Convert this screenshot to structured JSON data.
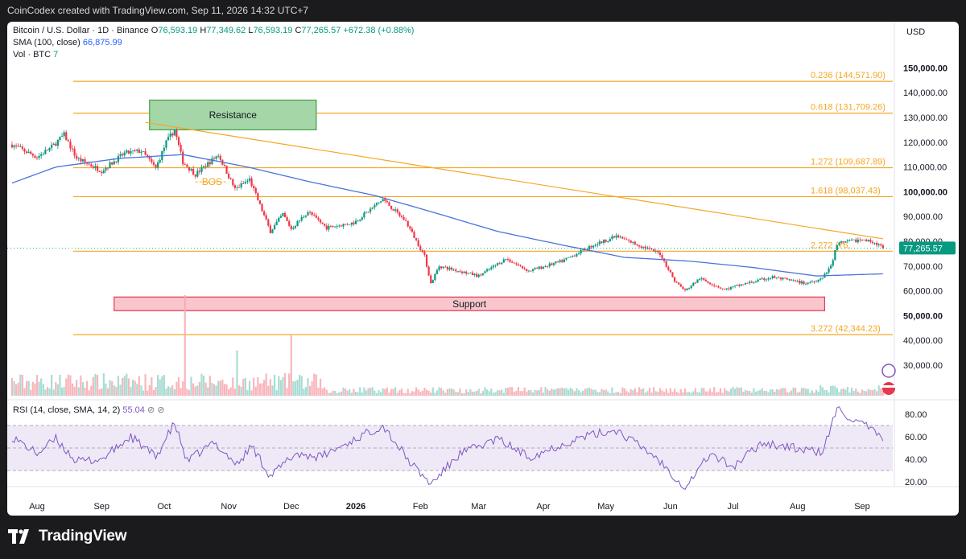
{
  "credit": "CoinCodex created with TradingView.com, Sep 11, 2026 14:32 UTC+7",
  "legend": {
    "symbol": "Bitcoin / U.S. Dollar · 1D · Binance",
    "ohlc": {
      "o_label": "O",
      "o": "76,593.19",
      "h_label": "H",
      "h": "77,349.62",
      "l_label": "L",
      "l": "76,593.19",
      "c_label": "C",
      "c": "77,265.57",
      "change": "+672.38 (+0.88%)"
    },
    "sma_label": "SMA (100, close)",
    "sma_value": "66,875.99",
    "vol_label": "Vol · BTC",
    "vol_value": "7",
    "rsi_label": "RSI (14, close, SMA, 14, 2)",
    "rsi_value": "55.04"
  },
  "currency": "USD",
  "current_price_label": "77,265.57",
  "brand": "TradingView",
  "colors": {
    "up": "#089981",
    "down": "#f23645",
    "sma": "#4a72d9",
    "fib": "#f5a623",
    "trend": "#f5a623",
    "resistance_fill": "#a5d6a7",
    "resistance_border": "#43a047",
    "support_fill": "#f8c6cc",
    "support_border": "#e53950",
    "rsi_line": "#7e57c2",
    "rsi_band": "#ede7f6"
  },
  "chart_data": [
    {
      "type": "candlestick",
      "y_axis": {
        "min": 20000,
        "max": 160000,
        "ticks": [
          30000,
          40000,
          50000,
          60000,
          70000,
          80000,
          90000,
          100000,
          110000,
          120000,
          130000,
          140000,
          150000
        ],
        "tick_labels": [
          "30,000.00",
          "40,000.00",
          "50,000.00",
          "60,000.00",
          "70,000.00",
          "80,000.00",
          "90,000.00",
          "100,000.00",
          "110,000.00",
          "120,000.00",
          "130,000.00",
          "140,000.00",
          "150,000.00"
        ],
        "bold_ticks": [
          50000,
          100000,
          150000
        ]
      },
      "x_axis": {
        "labels": [
          "Aug",
          "Sep",
          "Oct",
          "Nov",
          "Dec",
          "2026",
          "Feb",
          "Mar",
          "Apr",
          "May",
          "Jun",
          "Jul",
          "Aug",
          "Sep"
        ],
        "dates": [
          "2025-08-01",
          "2025-09-01",
          "2025-10-01",
          "2025-11-01",
          "2025-12-01",
          "2026-01-01",
          "2026-02-01",
          "2026-03-01",
          "2026-04-01",
          "2026-05-01",
          "2026-06-01",
          "2026-07-01",
          "2026-08-01",
          "2026-09-01"
        ],
        "bold": [
          "2026"
        ]
      },
      "price_path": [
        {
          "date": "2025-07-20",
          "price": 119000
        },
        {
          "date": "2025-08-01",
          "price": 114000
        },
        {
          "date": "2025-08-08",
          "price": 118000
        },
        {
          "date": "2025-08-14",
          "price": 123000
        },
        {
          "date": "2025-08-20",
          "price": 113500
        },
        {
          "date": "2025-09-01",
          "price": 108500
        },
        {
          "date": "2025-09-12",
          "price": 115500
        },
        {
          "date": "2025-09-20",
          "price": 116500
        },
        {
          "date": "2025-09-27",
          "price": 109500
        },
        {
          "date": "2025-10-02",
          "price": 120000
        },
        {
          "date": "2025-10-06",
          "price": 125000
        },
        {
          "date": "2025-10-10",
          "price": 112000
        },
        {
          "date": "2025-10-16",
          "price": 107000
        },
        {
          "date": "2025-10-27",
          "price": 115000
        },
        {
          "date": "2025-11-04",
          "price": 101000
        },
        {
          "date": "2025-11-11",
          "price": 105000
        },
        {
          "date": "2025-11-21",
          "price": 84000
        },
        {
          "date": "2025-11-27",
          "price": 91000
        },
        {
          "date": "2025-12-01",
          "price": 85000
        },
        {
          "date": "2025-12-09",
          "price": 92000
        },
        {
          "date": "2025-12-18",
          "price": 85500
        },
        {
          "date": "2025-12-31",
          "price": 87500
        },
        {
          "date": "2026-01-14",
          "price": 97000
        },
        {
          "date": "2026-01-25",
          "price": 88000
        },
        {
          "date": "2026-02-03",
          "price": 74000
        },
        {
          "date": "2026-02-06",
          "price": 63000
        },
        {
          "date": "2026-02-10",
          "price": 70000
        },
        {
          "date": "2026-03-01",
          "price": 66000
        },
        {
          "date": "2026-03-14",
          "price": 73000
        },
        {
          "date": "2026-03-25",
          "price": 68000
        },
        {
          "date": "2026-04-10",
          "price": 72000
        },
        {
          "date": "2026-04-25",
          "price": 78500
        },
        {
          "date": "2026-05-06",
          "price": 82000
        },
        {
          "date": "2026-05-15",
          "price": 79000
        },
        {
          "date": "2026-05-27",
          "price": 75000
        },
        {
          "date": "2026-06-03",
          "price": 64000
        },
        {
          "date": "2026-06-08",
          "price": 60000
        },
        {
          "date": "2026-06-15",
          "price": 65000
        },
        {
          "date": "2026-06-27",
          "price": 60500
        },
        {
          "date": "2026-07-05",
          "price": 62500
        },
        {
          "date": "2026-07-20",
          "price": 65500
        },
        {
          "date": "2026-08-05",
          "price": 63000
        },
        {
          "date": "2026-08-13",
          "price": 65000
        },
        {
          "date": "2026-08-17",
          "price": 70000
        },
        {
          "date": "2026-08-20",
          "price": 79000
        },
        {
          "date": "2026-08-30",
          "price": 80500
        },
        {
          "date": "2026-09-06",
          "price": 80000
        },
        {
          "date": "2026-09-11",
          "price": 77265.57
        }
      ],
      "sma100": [
        {
          "date": "2025-07-20",
          "price": 103500
        },
        {
          "date": "2025-08-10",
          "price": 110000
        },
        {
          "date": "2025-09-10",
          "price": 113500
        },
        {
          "date": "2025-10-10",
          "price": 115000
        },
        {
          "date": "2025-11-10",
          "price": 110000
        },
        {
          "date": "2025-12-10",
          "price": 104000
        },
        {
          "date": "2026-01-10",
          "price": 98500
        },
        {
          "date": "2026-02-10",
          "price": 91000
        },
        {
          "date": "2026-03-10",
          "price": 84000
        },
        {
          "date": "2026-04-10",
          "price": 78500
        },
        {
          "date": "2026-05-10",
          "price": 73500
        },
        {
          "date": "2026-06-10",
          "price": 72000
        },
        {
          "date": "2026-07-10",
          "price": 69500
        },
        {
          "date": "2026-08-10",
          "price": 66000
        },
        {
          "date": "2026-09-11",
          "price": 66875.99
        }
      ],
      "fib_levels": [
        {
          "ratio": "0.236",
          "price": 144571.9,
          "label": "0.236 (144,571.90)"
        },
        {
          "ratio": "0.618",
          "price": 131709.26,
          "label": "0.618 (131,709.26)"
        },
        {
          "ratio": "1.272",
          "price": 109687.89,
          "label": "1.272 (109,687.89)"
        },
        {
          "ratio": "1.618",
          "price": 98037.43,
          "label": "1.618 (98,037.43)"
        },
        {
          "ratio": "2.272",
          "price": 76000,
          "label": "2.272 (76,"
        },
        {
          "ratio": "3.272",
          "price": 42344.23,
          "label": "3.272 (42,344.23)"
        }
      ],
      "trendline": [
        {
          "date": "2025-09-22",
          "price": 128000
        },
        {
          "date": "2026-09-11",
          "price": 81000
        }
      ],
      "resistance_zone": {
        "label": "Resistance",
        "from": "2025-09-24",
        "to": "2025-12-13",
        "low": 125000,
        "high": 137000
      },
      "support_zone": {
        "label": "Support",
        "from": "2025-09-07",
        "to": "2026-08-14",
        "low": 52000,
        "high": 57500
      },
      "bos_label": "BOS",
      "bos": {
        "from": "2025-10-16",
        "to": "2025-10-31",
        "price": 104000
      },
      "current_price": 77265.57
    },
    {
      "type": "bar",
      "name": "Vol · BTC",
      "note": "volume bars, relative heights",
      "spikes": [
        {
          "date": "2025-10-11",
          "relative": 1.0
        },
        {
          "date": "2025-12-01",
          "relative": 0.6
        },
        {
          "date": "2025-11-05",
          "relative": 0.45
        }
      ]
    },
    {
      "type": "line",
      "name": "RSI (14, close, SMA, 14, 2)",
      "y_axis": {
        "min": 10,
        "max": 90,
        "ticks": [
          20,
          40,
          60,
          80
        ],
        "tick_labels": [
          "20.00",
          "40.00",
          "60.00",
          "80.00"
        ]
      },
      "bands": [
        30,
        50,
        70
      ],
      "values": [
        {
          "date": "2025-07-20",
          "rsi": 60
        },
        {
          "date": "2025-08-01",
          "rsi": 45
        },
        {
          "date": "2025-08-10",
          "rsi": 58
        },
        {
          "date": "2025-08-20",
          "rsi": 38
        },
        {
          "date": "2025-09-01",
          "rsi": 40
        },
        {
          "date": "2025-09-15",
          "rsi": 60
        },
        {
          "date": "2025-09-27",
          "rsi": 42
        },
        {
          "date": "2025-10-06",
          "rsi": 72
        },
        {
          "date": "2025-10-12",
          "rsi": 38
        },
        {
          "date": "2025-10-25",
          "rsi": 55
        },
        {
          "date": "2025-11-05",
          "rsi": 35
        },
        {
          "date": "2025-11-12",
          "rsi": 52
        },
        {
          "date": "2025-11-21",
          "rsi": 25
        },
        {
          "date": "2025-12-03",
          "rsi": 45
        },
        {
          "date": "2025-12-15",
          "rsi": 42
        },
        {
          "date": "2026-01-05",
          "rsi": 62
        },
        {
          "date": "2026-01-14",
          "rsi": 70
        },
        {
          "date": "2026-01-28",
          "rsi": 35
        },
        {
          "date": "2026-02-06",
          "rsi": 18
        },
        {
          "date": "2026-02-20",
          "rsi": 45
        },
        {
          "date": "2026-03-10",
          "rsi": 58
        },
        {
          "date": "2026-03-25",
          "rsi": 42
        },
        {
          "date": "2026-04-20",
          "rsi": 60
        },
        {
          "date": "2026-05-06",
          "rsi": 66
        },
        {
          "date": "2026-05-25",
          "rsi": 42
        },
        {
          "date": "2026-06-08",
          "rsi": 15
        },
        {
          "date": "2026-06-20",
          "rsi": 45
        },
        {
          "date": "2026-07-01",
          "rsi": 33
        },
        {
          "date": "2026-07-15",
          "rsi": 55
        },
        {
          "date": "2026-08-05",
          "rsi": 48
        },
        {
          "date": "2026-08-13",
          "rsi": 46
        },
        {
          "date": "2026-08-20",
          "rsi": 85
        },
        {
          "date": "2026-08-30",
          "rsi": 72
        },
        {
          "date": "2026-09-05",
          "rsi": 68
        },
        {
          "date": "2026-09-11",
          "rsi": 55.04
        }
      ]
    }
  ]
}
